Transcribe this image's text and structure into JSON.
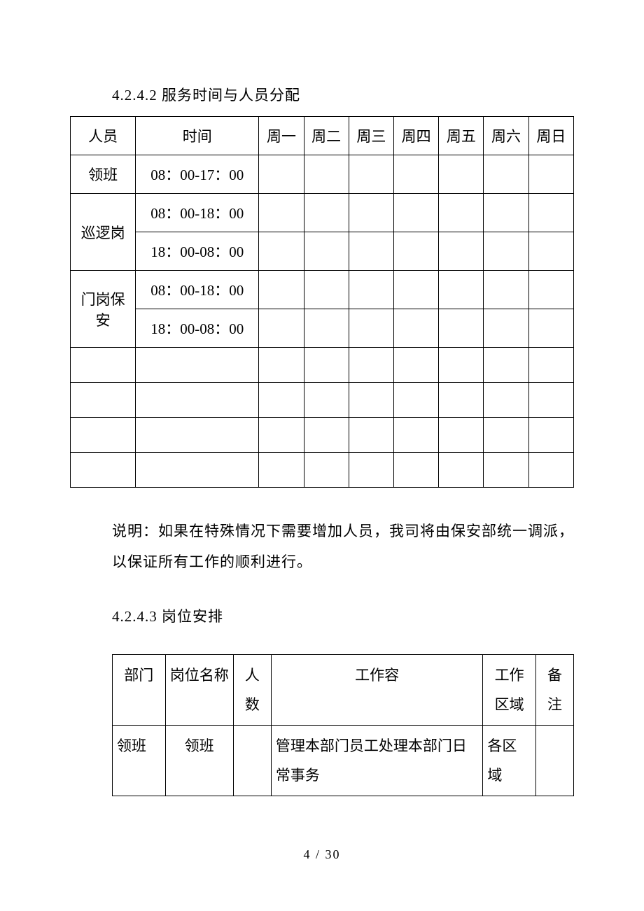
{
  "heading1": "4.2.4.2 服务时间与人员分配",
  "table1": {
    "headers": {
      "person": "人员",
      "time": "时间",
      "mon": "周一",
      "tue": "周二",
      "wed": "周三",
      "thu": "周四",
      "fri": "周五",
      "sat": "周六",
      "sun": "周日"
    },
    "rows": {
      "r1_person": "领班",
      "r1_time": "08：00-17：00",
      "r2_person": "巡逻岗",
      "r2_time": "08：00-18：00",
      "r3_time": "18：00-08：00",
      "r4_person": "门岗保安",
      "r4_time": "08：00-18：00",
      "r5_time": "18：00-08：00"
    }
  },
  "note": "说明：如果在特殊情况下需要增加人员，我司将由保安部统一调派，以保证所有工作的顺利进行。",
  "heading2": "4.2.4.3 岗位安排",
  "table2": {
    "headers": {
      "dept": "部门",
      "pos": "岗位名称",
      "count": "人数",
      "work": "工作容",
      "area": "工作区域",
      "remark": "备注"
    },
    "rows": {
      "r1_dept": "领班",
      "r1_pos": "领班",
      "r1_count": "",
      "r1_work": "管理本部门员工处理本部门日常事务",
      "r1_area": "各区域",
      "r1_remark": ""
    }
  },
  "footer": "4 / 30"
}
